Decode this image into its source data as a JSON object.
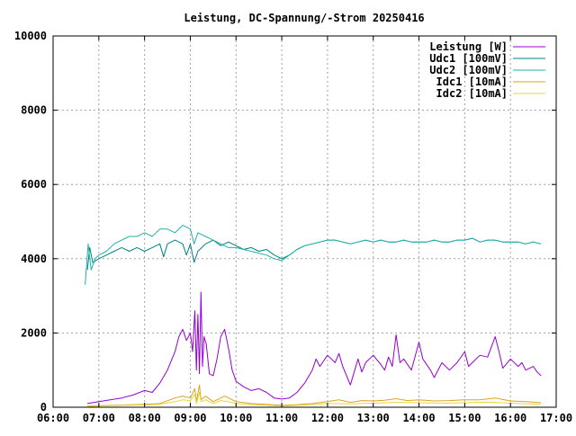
{
  "chart_data": {
    "type": "line",
    "title": "Leistung, DC-Spannung/-Strom 20250416",
    "xlabel": "",
    "ylabel": "",
    "xlim": [
      "06:00",
      "17:00"
    ],
    "ylim": [
      0,
      10000
    ],
    "x_ticks": [
      "06:00",
      "07:00",
      "08:00",
      "09:00",
      "10:00",
      "11:00",
      "12:00",
      "13:00",
      "14:00",
      "15:00",
      "16:00",
      "17:00"
    ],
    "y_ticks": [
      "0",
      "2000",
      "4000",
      "6000",
      "8000",
      "10000"
    ],
    "grid": true,
    "legend_position": "top-right",
    "series": [
      {
        "name": "Leistung [W]",
        "color": "#9400d3",
        "points": [
          [
            "06:45",
            100
          ],
          [
            "07:00",
            150
          ],
          [
            "07:15",
            200
          ],
          [
            "07:30",
            250
          ],
          [
            "07:45",
            330
          ],
          [
            "08:00",
            450
          ],
          [
            "08:10",
            400
          ],
          [
            "08:20",
            650
          ],
          [
            "08:30",
            1000
          ],
          [
            "08:40",
            1500
          ],
          [
            "08:45",
            1900
          ],
          [
            "08:50",
            2100
          ],
          [
            "08:55",
            1800
          ],
          [
            "09:00",
            2000
          ],
          [
            "09:03",
            1500
          ],
          [
            "09:06",
            2600
          ],
          [
            "09:08",
            1000
          ],
          [
            "09:10",
            2500
          ],
          [
            "09:12",
            900
          ],
          [
            "09:14",
            3100
          ],
          [
            "09:16",
            1100
          ],
          [
            "09:18",
            1900
          ],
          [
            "09:21",
            1700
          ],
          [
            "09:25",
            900
          ],
          [
            "09:30",
            850
          ],
          [
            "09:35",
            1300
          ],
          [
            "09:40",
            1900
          ],
          [
            "09:45",
            2100
          ],
          [
            "09:50",
            1600
          ],
          [
            "09:55",
            1000
          ],
          [
            "10:00",
            700
          ],
          [
            "10:10",
            550
          ],
          [
            "10:20",
            450
          ],
          [
            "10:30",
            500
          ],
          [
            "10:40",
            400
          ],
          [
            "10:50",
            250
          ],
          [
            "11:00",
            220
          ],
          [
            "11:10",
            250
          ],
          [
            "11:20",
            400
          ],
          [
            "11:30",
            650
          ],
          [
            "11:40",
            1000
          ],
          [
            "11:45",
            1300
          ],
          [
            "11:50",
            1100
          ],
          [
            "12:00",
            1400
          ],
          [
            "12:10",
            1200
          ],
          [
            "12:15",
            1450
          ],
          [
            "12:20",
            1100
          ],
          [
            "12:30",
            600
          ],
          [
            "12:40",
            1300
          ],
          [
            "12:45",
            950
          ],
          [
            "12:50",
            1200
          ],
          [
            "13:00",
            1400
          ],
          [
            "13:10",
            1150
          ],
          [
            "13:15",
            1000
          ],
          [
            "13:20",
            1350
          ],
          [
            "13:25",
            1100
          ],
          [
            "13:30",
            1950
          ],
          [
            "13:35",
            1200
          ],
          [
            "13:40",
            1300
          ],
          [
            "13:50",
            1000
          ],
          [
            "14:00",
            1750
          ],
          [
            "14:05",
            1300
          ],
          [
            "14:15",
            1000
          ],
          [
            "14:20",
            800
          ],
          [
            "14:30",
            1200
          ],
          [
            "14:40",
            1000
          ],
          [
            "14:50",
            1200
          ],
          [
            "15:00",
            1500
          ],
          [
            "15:05",
            1100
          ],
          [
            "15:10",
            1200
          ],
          [
            "15:20",
            1400
          ],
          [
            "15:30",
            1350
          ],
          [
            "15:40",
            1900
          ],
          [
            "15:45",
            1500
          ],
          [
            "15:50",
            1050
          ],
          [
            "16:00",
            1300
          ],
          [
            "16:10",
            1100
          ],
          [
            "16:15",
            1200
          ],
          [
            "16:20",
            1000
          ],
          [
            "16:30",
            1100
          ],
          [
            "16:35",
            950
          ],
          [
            "16:40",
            850
          ]
        ]
      },
      {
        "name": "Udc1 [100mV]",
        "color": "#008080",
        "points": [
          [
            "06:45",
            3700
          ],
          [
            "06:48",
            4300
          ],
          [
            "06:52",
            3900
          ],
          [
            "07:00",
            4000
          ],
          [
            "07:10",
            4100
          ],
          [
            "07:20",
            4200
          ],
          [
            "07:30",
            4300
          ],
          [
            "07:40",
            4200
          ],
          [
            "07:50",
            4300
          ],
          [
            "08:00",
            4200
          ],
          [
            "08:10",
            4300
          ],
          [
            "08:20",
            4400
          ],
          [
            "08:25",
            4050
          ],
          [
            "08:30",
            4400
          ],
          [
            "08:40",
            4500
          ],
          [
            "08:50",
            4400
          ],
          [
            "08:55",
            4100
          ],
          [
            "09:00",
            4400
          ],
          [
            "09:05",
            3900
          ],
          [
            "09:10",
            4200
          ],
          [
            "09:20",
            4400
          ],
          [
            "09:30",
            4500
          ],
          [
            "09:40",
            4350
          ],
          [
            "09:50",
            4450
          ],
          [
            "10:00",
            4350
          ],
          [
            "10:10",
            4250
          ],
          [
            "10:20",
            4300
          ],
          [
            "10:30",
            4200
          ],
          [
            "10:40",
            4250
          ],
          [
            "10:50",
            4100
          ],
          [
            "11:00",
            4000
          ],
          [
            "11:10",
            4100
          ],
          [
            "11:20",
            4250
          ],
          [
            "11:30",
            4350
          ],
          [
            "11:40",
            4400
          ],
          [
            "11:50",
            4450
          ],
          [
            "12:00",
            4500
          ],
          [
            "12:10",
            4500
          ],
          [
            "12:20",
            4450
          ],
          [
            "12:30",
            4400
          ],
          [
            "12:40",
            4450
          ],
          [
            "12:50",
            4500
          ],
          [
            "13:00",
            4450
          ],
          [
            "13:10",
            4500
          ],
          [
            "13:20",
            4450
          ],
          [
            "13:30",
            4450
          ],
          [
            "13:40",
            4500
          ],
          [
            "13:50",
            4450
          ],
          [
            "14:00",
            4450
          ],
          [
            "14:10",
            4450
          ],
          [
            "14:20",
            4500
          ],
          [
            "14:30",
            4450
          ],
          [
            "14:40",
            4450
          ],
          [
            "14:50",
            4500
          ],
          [
            "15:00",
            4500
          ],
          [
            "15:10",
            4550
          ],
          [
            "15:20",
            4450
          ],
          [
            "15:30",
            4500
          ],
          [
            "15:40",
            4500
          ],
          [
            "15:50",
            4450
          ],
          [
            "16:00",
            4450
          ],
          [
            "16:10",
            4450
          ],
          [
            "16:20",
            4400
          ],
          [
            "16:30",
            4450
          ],
          [
            "16:40",
            4400
          ]
        ]
      },
      {
        "name": "Udc2 [100mV]",
        "color": "#20b2aa",
        "points": [
          [
            "06:42",
            3300
          ],
          [
            "06:46",
            4400
          ],
          [
            "06:50",
            3700
          ],
          [
            "06:55",
            4000
          ],
          [
            "07:00",
            4100
          ],
          [
            "07:10",
            4200
          ],
          [
            "07:20",
            4400
          ],
          [
            "07:30",
            4500
          ],
          [
            "07:40",
            4600
          ],
          [
            "07:50",
            4600
          ],
          [
            "08:00",
            4700
          ],
          [
            "08:10",
            4600
          ],
          [
            "08:20",
            4800
          ],
          [
            "08:30",
            4800
          ],
          [
            "08:40",
            4700
          ],
          [
            "08:50",
            4900
          ],
          [
            "09:00",
            4800
          ],
          [
            "09:05",
            4400
          ],
          [
            "09:10",
            4700
          ],
          [
            "09:20",
            4600
          ],
          [
            "09:30",
            4500
          ],
          [
            "09:40",
            4400
          ],
          [
            "09:50",
            4300
          ],
          [
            "10:00",
            4300
          ],
          [
            "10:10",
            4250
          ],
          [
            "10:20",
            4200
          ],
          [
            "10:30",
            4150
          ],
          [
            "10:40",
            4100
          ],
          [
            "10:50",
            4000
          ],
          [
            "11:00",
            3950
          ],
          [
            "11:10",
            4100
          ],
          [
            "11:20",
            4250
          ],
          [
            "11:30",
            4350
          ],
          [
            "11:40",
            4400
          ],
          [
            "11:50",
            4450
          ],
          [
            "12:00",
            4500
          ],
          [
            "12:10",
            4500
          ],
          [
            "12:20",
            4450
          ],
          [
            "12:30",
            4400
          ],
          [
            "12:40",
            4450
          ],
          [
            "12:50",
            4500
          ],
          [
            "13:00",
            4450
          ],
          [
            "13:10",
            4500
          ],
          [
            "13:20",
            4450
          ],
          [
            "13:30",
            4450
          ],
          [
            "13:40",
            4500
          ],
          [
            "13:50",
            4450
          ],
          [
            "14:00",
            4450
          ],
          [
            "14:10",
            4450
          ],
          [
            "14:20",
            4500
          ],
          [
            "14:30",
            4450
          ],
          [
            "14:40",
            4450
          ],
          [
            "14:50",
            4500
          ],
          [
            "15:00",
            4500
          ],
          [
            "15:10",
            4550
          ],
          [
            "15:20",
            4450
          ],
          [
            "15:30",
            4500
          ],
          [
            "15:40",
            4500
          ],
          [
            "15:50",
            4450
          ],
          [
            "16:00",
            4450
          ],
          [
            "16:10",
            4450
          ],
          [
            "16:20",
            4400
          ],
          [
            "16:30",
            4450
          ],
          [
            "16:40",
            4400
          ]
        ]
      },
      {
        "name": "Idc1 [10mA]",
        "color": "#daa520",
        "points": [
          [
            "06:45",
            30
          ],
          [
            "07:00",
            40
          ],
          [
            "07:30",
            60
          ],
          [
            "08:00",
            80
          ],
          [
            "08:20",
            100
          ],
          [
            "08:40",
            250
          ],
          [
            "08:50",
            300
          ],
          [
            "09:00",
            250
          ],
          [
            "09:06",
            500
          ],
          [
            "09:08",
            150
          ],
          [
            "09:12",
            600
          ],
          [
            "09:14",
            200
          ],
          [
            "09:20",
            300
          ],
          [
            "09:30",
            150
          ],
          [
            "09:40",
            250
          ],
          [
            "09:45",
            300
          ],
          [
            "09:50",
            250
          ],
          [
            "10:00",
            150
          ],
          [
            "10:20",
            100
          ],
          [
            "10:40",
            80
          ],
          [
            "11:00",
            50
          ],
          [
            "11:20",
            70
          ],
          [
            "11:40",
            100
          ],
          [
            "12:00",
            150
          ],
          [
            "12:15",
            200
          ],
          [
            "12:30",
            130
          ],
          [
            "12:45",
            180
          ],
          [
            "13:00",
            170
          ],
          [
            "13:15",
            190
          ],
          [
            "13:30",
            230
          ],
          [
            "13:45",
            180
          ],
          [
            "14:00",
            200
          ],
          [
            "14:20",
            170
          ],
          [
            "14:40",
            180
          ],
          [
            "15:00",
            200
          ],
          [
            "15:20",
            200
          ],
          [
            "15:40",
            250
          ],
          [
            "16:00",
            170
          ],
          [
            "16:20",
            150
          ],
          [
            "16:40",
            120
          ]
        ]
      },
      {
        "name": "Idc2 [10mA]",
        "color": "#e6d83c",
        "points": [
          [
            "06:45",
            20
          ],
          [
            "07:00",
            30
          ],
          [
            "07:30",
            50
          ],
          [
            "08:00",
            60
          ],
          [
            "08:20",
            80
          ],
          [
            "08:40",
            150
          ],
          [
            "08:50",
            200
          ],
          [
            "09:00",
            180
          ],
          [
            "09:06",
            350
          ],
          [
            "09:08",
            100
          ],
          [
            "09:12",
            400
          ],
          [
            "09:14",
            150
          ],
          [
            "09:20",
            200
          ],
          [
            "09:30",
            100
          ],
          [
            "09:40",
            180
          ],
          [
            "09:50",
            150
          ],
          [
            "10:00",
            100
          ],
          [
            "10:20",
            70
          ],
          [
            "10:40",
            50
          ],
          [
            "11:00",
            30
          ],
          [
            "11:20",
            50
          ],
          [
            "11:40",
            70
          ],
          [
            "12:00",
            100
          ],
          [
            "12:30",
            90
          ],
          [
            "13:00",
            110
          ],
          [
            "13:30",
            130
          ],
          [
            "14:00",
            120
          ],
          [
            "14:30",
            110
          ],
          [
            "15:00",
            120
          ],
          [
            "15:30",
            140
          ],
          [
            "16:00",
            110
          ],
          [
            "16:40",
            80
          ]
        ]
      }
    ]
  }
}
